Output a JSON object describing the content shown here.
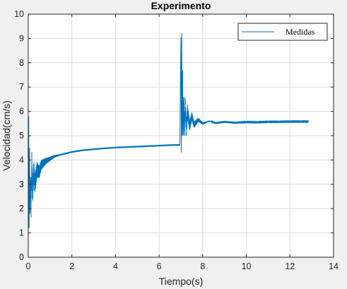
{
  "chart_data": {
    "type": "line",
    "title": "Experimento",
    "xlabel": "Tiempo(s)",
    "ylabel": "Velocidad(cm/s)",
    "xlim": [
      0,
      14
    ],
    "ylim": [
      0,
      10
    ],
    "xticks": [
      "0",
      "2",
      "4",
      "6",
      "8",
      "10",
      "12",
      "14"
    ],
    "yticks": [
      "0",
      "1",
      "2",
      "3",
      "4",
      "5",
      "6",
      "7",
      "8",
      "9",
      "10"
    ],
    "grid": true,
    "legend_position": "top-right",
    "series": [
      {
        "name": "Medidas",
        "color": "#0072bd",
        "x": [
          0.0,
          0.02,
          0.04,
          0.06,
          0.08,
          0.1,
          0.13,
          0.16,
          0.2,
          0.25,
          0.3,
          0.4,
          0.5,
          0.6,
          0.8,
          1.0,
          1.2,
          1.5,
          2.0,
          2.5,
          3.0,
          3.5,
          4.0,
          4.5,
          5.0,
          5.5,
          6.0,
          6.5,
          6.95,
          7.0,
          7.02,
          7.04,
          7.06,
          7.08,
          7.1,
          7.13,
          7.16,
          7.2,
          7.25,
          7.3,
          7.4,
          7.5,
          7.6,
          7.8,
          8.0,
          8.3,
          8.6,
          9.0,
          9.5,
          10.0,
          10.5,
          11.0,
          11.5,
          12.0,
          12.5,
          12.85
        ],
        "y": [
          0.0,
          5.8,
          1.2,
          4.5,
          1.8,
          3.3,
          2.2,
          3.8,
          2.6,
          3.6,
          3.0,
          3.6,
          3.5,
          3.8,
          3.95,
          4.05,
          4.15,
          4.22,
          4.33,
          4.4,
          4.44,
          4.48,
          4.51,
          4.53,
          4.55,
          4.57,
          4.59,
          4.61,
          4.62,
          9.05,
          4.3,
          8.7,
          5.0,
          7.2,
          5.0,
          6.6,
          5.1,
          6.2,
          5.3,
          6.0,
          5.4,
          5.8,
          5.45,
          5.65,
          5.5,
          5.6,
          5.52,
          5.57,
          5.53,
          5.56,
          5.55,
          5.57,
          5.57,
          5.58,
          5.58,
          5.58
        ]
      }
    ]
  }
}
